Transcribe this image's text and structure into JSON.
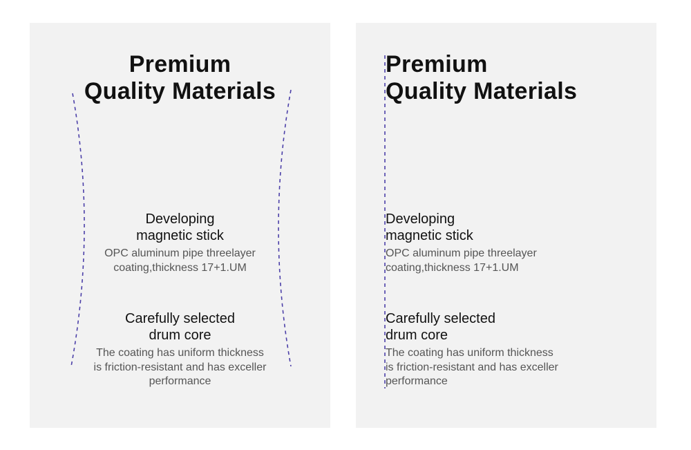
{
  "guide_color": "#4b3fa8",
  "panels": [
    {
      "alignment": "center",
      "title": [
        "Premium",
        "Quality Materials"
      ],
      "section1": {
        "heading": [
          "Developing",
          "magnetic stick"
        ],
        "body": [
          "OPC aluminum pipe threelayer",
          "coating,thickness 17+1.UM"
        ]
      },
      "section2": {
        "heading": [
          "Carefully selected",
          "drum core"
        ],
        "body": [
          "The coating has uniform thickness",
          "is friction-resistant and has exceller",
          "performance"
        ]
      }
    },
    {
      "alignment": "left",
      "title": [
        "Premium",
        "Quality Materials"
      ],
      "section1": {
        "heading": [
          "Developing",
          "magnetic stick"
        ],
        "body": [
          "OPC aluminum pipe threelayer",
          "coating,thickness 17+1.UM"
        ]
      },
      "section2": {
        "heading": [
          "Carefully selected",
          "drum core"
        ],
        "body": [
          "The coating has uniform thickness",
          "is friction-resistant and has exceller",
          "performance"
        ]
      }
    }
  ]
}
